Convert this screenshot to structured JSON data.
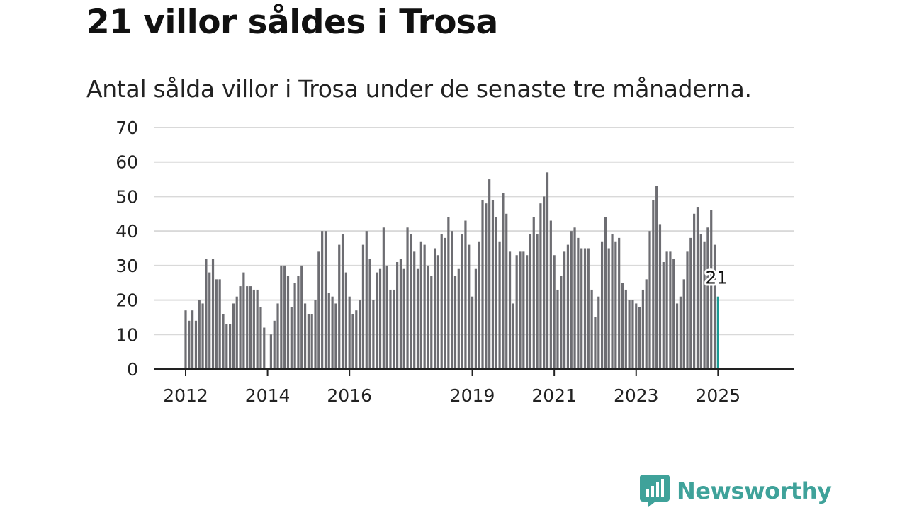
{
  "header": {
    "title": "21 villor såldes i Trosa",
    "subtitle": "Antal sålda villor i Trosa under de senaste tre månaderna."
  },
  "brand": {
    "name": "Newsworthy",
    "icon": "newsworthy-logo-icon"
  },
  "colors": {
    "bar": "#6d6d72",
    "highlight": "#1a9a93",
    "brand": "#3fa29a",
    "grid": "#d9d9d9",
    "axis": "#222222"
  },
  "chart_data": {
    "type": "bar",
    "grid": true,
    "ylim": [
      0,
      70
    ],
    "yticks": [
      0,
      10,
      20,
      30,
      40,
      50,
      60,
      70
    ],
    "xticks": [
      "2012",
      "2014",
      "2016",
      "2019",
      "2021",
      "2023",
      "2025"
    ],
    "x_start": "2012-01",
    "x_end": "2025-01",
    "frequency": "monthly",
    "annotation": {
      "label": "21",
      "at": "2025-01"
    },
    "values": [
      17,
      14,
      17,
      14,
      20,
      19,
      32,
      28,
      32,
      26,
      26,
      16,
      13,
      13,
      19,
      21,
      24,
      28,
      24,
      24,
      23,
      23,
      18,
      12,
      0,
      10,
      14,
      19,
      30,
      30,
      27,
      18,
      25,
      27,
      30,
      19,
      16,
      16,
      20,
      34,
      40,
      40,
      22,
      21,
      19,
      36,
      39,
      28,
      21,
      16,
      17,
      20,
      36,
      40,
      32,
      20,
      28,
      29,
      41,
      30,
      23,
      23,
      31,
      32,
      29,
      41,
      39,
      34,
      29,
      37,
      36,
      30,
      27,
      35,
      33,
      39,
      38,
      44,
      40,
      27,
      29,
      39,
      43,
      36,
      21,
      29,
      37,
      49,
      48,
      55,
      49,
      44,
      37,
      51,
      45,
      34,
      19,
      33,
      34,
      34,
      33,
      39,
      44,
      39,
      48,
      50,
      57,
      43,
      33,
      23,
      27,
      34,
      36,
      40,
      41,
      38,
      35,
      35,
      35,
      23,
      15,
      21,
      37,
      44,
      35,
      39,
      37,
      38,
      25,
      23,
      20,
      20,
      19,
      18,
      23,
      26,
      40,
      49,
      53,
      42,
      31,
      34,
      34,
      32,
      19,
      21,
      26,
      34,
      38,
      45,
      47,
      39,
      37,
      41,
      46,
      36,
      21
    ]
  }
}
